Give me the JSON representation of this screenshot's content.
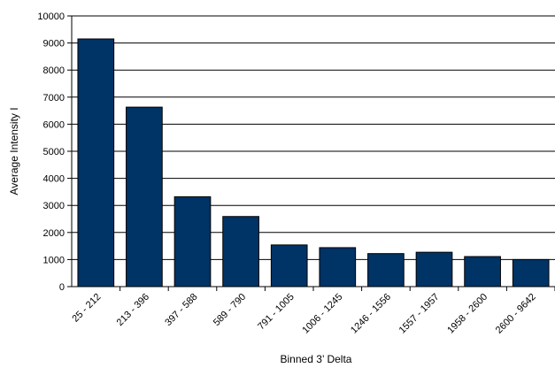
{
  "chart_data": {
    "type": "bar",
    "title": "",
    "xlabel": "Binned 3’ Delta",
    "ylabel": "Average Intensity I",
    "ylim": [
      0,
      10000
    ],
    "yticks": [
      0,
      1000,
      2000,
      3000,
      4000,
      5000,
      6000,
      7000,
      8000,
      9000,
      10000
    ],
    "grid": true,
    "legend": "none",
    "bar_color": "#003366",
    "categories": [
      "25 - 212",
      "213 - 396",
      "397 - 588",
      "589 - 790",
      "791 - 1005",
      "1006 - 1245",
      "1246 - 1556",
      "1557 - 1957",
      "1958 - 2600",
      "2600 - 9642"
    ],
    "values": [
      9150,
      6630,
      3320,
      2590,
      1540,
      1440,
      1220,
      1270,
      1110,
      1000
    ]
  }
}
